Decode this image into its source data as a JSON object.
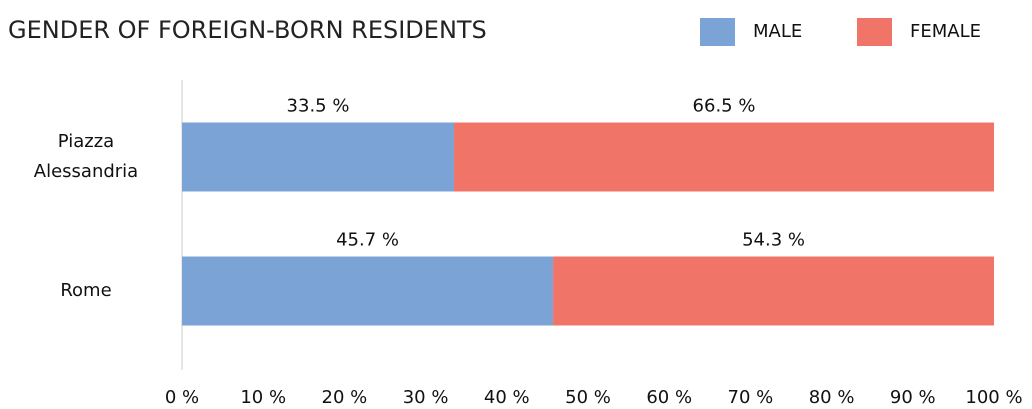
{
  "chart_data": {
    "type": "stacked_barh",
    "title": "GENDER OF FOREIGN-BORN RESIDENTS",
    "categories": [
      "Piazza Alessandria",
      "Rome"
    ],
    "series": [
      {
        "name": "MALE",
        "color": "#7ba3d6",
        "values": [
          33.5,
          45.7
        ],
        "value_labels": [
          "33.5 %",
          "45.7 %"
        ]
      },
      {
        "name": "FEMALE",
        "color": "#f07467",
        "values": [
          66.5,
          54.3
        ],
        "value_labels": [
          "66.5 %",
          "54.3 %"
        ]
      }
    ],
    "xlim": [
      0,
      100
    ],
    "xticks": [
      {
        "value": 0,
        "label": "0 %"
      },
      {
        "value": 10,
        "label": "10 %"
      },
      {
        "value": 20,
        "label": "20 %"
      },
      {
        "value": 30,
        "label": "30 %"
      },
      {
        "value": 40,
        "label": "40 %"
      },
      {
        "value": 50,
        "label": "50 %"
      },
      {
        "value": 60,
        "label": "60 %"
      },
      {
        "value": 70,
        "label": "70 %"
      },
      {
        "value": 80,
        "label": "80 %"
      },
      {
        "value": 90,
        "label": "90 %"
      },
      {
        "value": 100,
        "label": "100 %"
      }
    ],
    "legend": "top-right"
  }
}
